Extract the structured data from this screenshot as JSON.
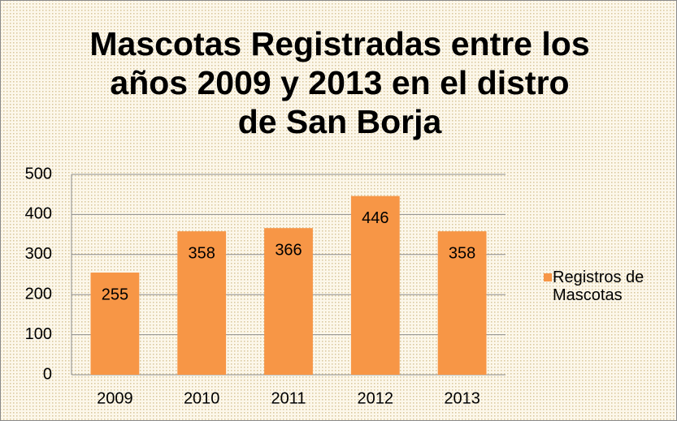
{
  "chart_data": {
    "type": "bar",
    "title": "Mascotas Registradas entre los años 2009 y 2013 en el distro de San Borja",
    "categories": [
      "2009",
      "2010",
      "2011",
      "2012",
      "2013"
    ],
    "series": [
      {
        "name": "Registros de Mascotas",
        "color": "#f79646",
        "values": [
          255,
          358,
          366,
          446,
          358
        ]
      }
    ],
    "ylim": [
      0,
      500
    ],
    "yticks": [
      0,
      100,
      200,
      300,
      400,
      500
    ],
    "grid": true,
    "legend": "right"
  }
}
